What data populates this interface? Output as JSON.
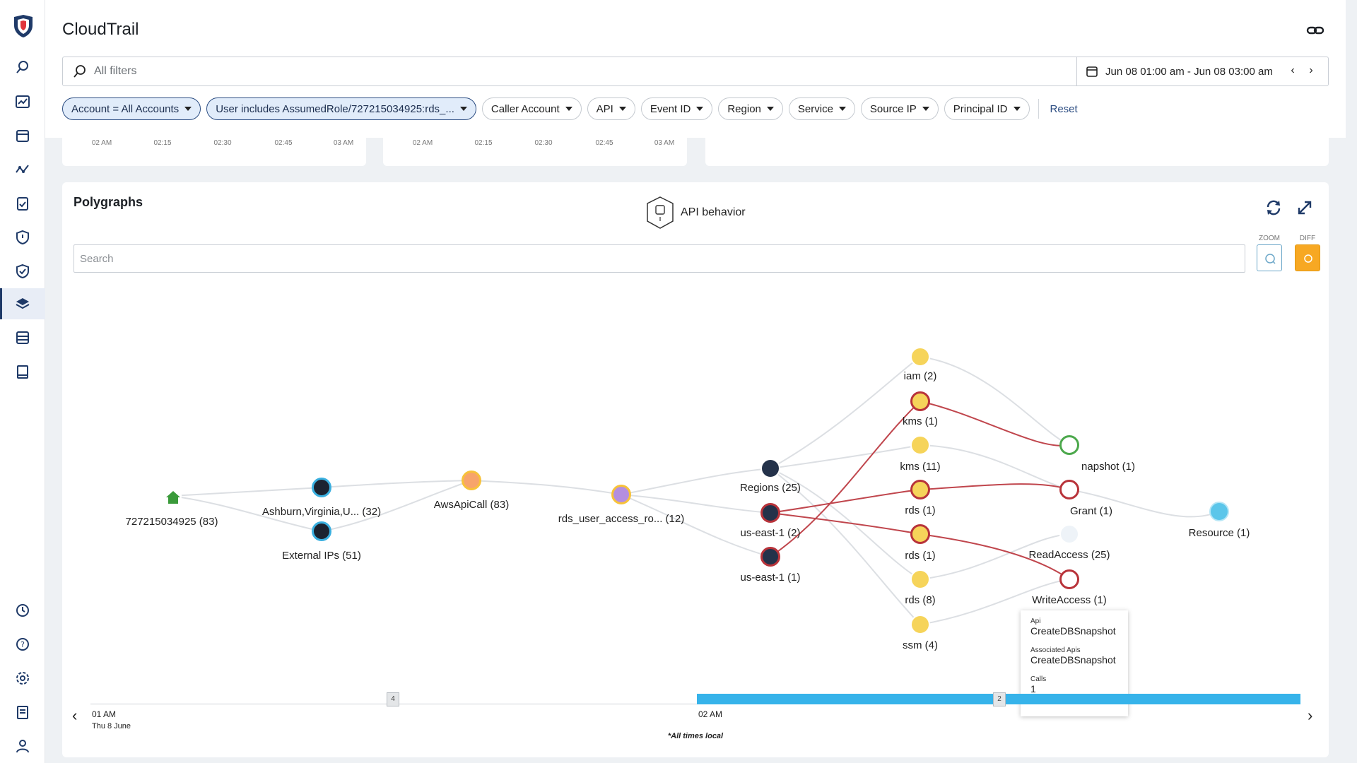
{
  "app": {
    "title": "CloudTrail"
  },
  "colors": {
    "accent": "#2c4d82",
    "timeline": "#36b3ea",
    "diff": "#f7a823",
    "edge_red": "#c0464d"
  },
  "rail_icons": [
    "shield-logo-icon",
    "search-icon",
    "dashboard-icon",
    "calendar-icon",
    "trend-icon",
    "clipboard-check-icon",
    "shield-icon",
    "shield-check-icon",
    "layers-icon",
    "database-icon",
    "book-icon",
    "history-icon",
    "help-icon",
    "gear-icon",
    "report-icon",
    "user-icon"
  ],
  "filters": {
    "placeholder": "All filters",
    "date_range": "Jun 08 01:00 am - Jun 08 03:00 am",
    "chips": [
      {
        "label": "Account = All Accounts",
        "selected": true
      },
      {
        "label": "User includes AssumedRole/727215034925:rds_...",
        "selected": true
      },
      {
        "label": "Caller Account",
        "selected": false
      },
      {
        "label": "API",
        "selected": false
      },
      {
        "label": "Event ID",
        "selected": false
      },
      {
        "label": "Region",
        "selected": false
      },
      {
        "label": "Service",
        "selected": false
      },
      {
        "label": "Source IP",
        "selected": false
      },
      {
        "label": "Principal ID",
        "selected": false
      }
    ],
    "reset_label": "Reset"
  },
  "mini_charts": [
    {
      "ticks": [
        "02 AM",
        "02:15",
        "02:30",
        "02:45",
        "03 AM"
      ]
    },
    {
      "ticks": [
        "02 AM",
        "02:15",
        "02:30",
        "02:45",
        "03 AM"
      ]
    }
  ],
  "polygraph": {
    "title": "Polygraphs",
    "behavior_label": "API behavior",
    "search_placeholder": "Search",
    "zoom_label": "ZOOM",
    "diff_label": "DIFF",
    "nodes": [
      {
        "id": "acct",
        "label": "727215034925 (83)",
        "type": "home"
      },
      {
        "id": "ash",
        "label": "Ashburn,Virginia,U... (32)",
        "type": "ip"
      },
      {
        "id": "ext",
        "label": "External IPs (51)",
        "type": "ip"
      },
      {
        "id": "aws",
        "label": "AwsApiCall (83)",
        "type": "call"
      },
      {
        "id": "user",
        "label": "rds_user_access_ro... (12)",
        "type": "user"
      },
      {
        "id": "regions",
        "label": "Regions (25)",
        "type": "globe"
      },
      {
        "id": "use1a",
        "label": "us-east-1 (2)",
        "type": "globe-alert"
      },
      {
        "id": "use1b",
        "label": "us-east-1 (1)",
        "type": "globe-alert"
      },
      {
        "id": "iam",
        "label": "iam (2)",
        "type": "service"
      },
      {
        "id": "kms1",
        "label": "kms (1)",
        "type": "service-alert"
      },
      {
        "id": "kms11",
        "label": "kms (11)",
        "type": "service"
      },
      {
        "id": "rds1a",
        "label": "rds (1)",
        "type": "service-alert"
      },
      {
        "id": "rds1b",
        "label": "rds (1)",
        "type": "service-alert"
      },
      {
        "id": "rds8",
        "label": "rds (8)",
        "type": "service"
      },
      {
        "id": "ssm",
        "label": "ssm (4)",
        "type": "service"
      },
      {
        "id": "snap",
        "label": "napshot (1)",
        "type": "api-selected"
      },
      {
        "id": "grant",
        "label": "Grant (1)",
        "type": "api-alert"
      },
      {
        "id": "read",
        "label": "ReadAccess (25)",
        "type": "api"
      },
      {
        "id": "write",
        "label": "WriteAccess (1)",
        "type": "api-alert"
      },
      {
        "id": "res",
        "label": "Resource (1)",
        "type": "resource"
      }
    ],
    "tooltip": {
      "api_key": "Api",
      "api_value": "CreateDBSnapshot",
      "assoc_key": "Associated Apis",
      "assoc_value": "CreateDBSnapshot",
      "calls_key": "Calls",
      "calls_value": "1"
    },
    "timeline": {
      "start_time": "01 AM",
      "start_date": "Thu 8 June",
      "mid_time": "02 AM",
      "marker1": "4",
      "marker2": "2",
      "note": "*All times local"
    }
  }
}
